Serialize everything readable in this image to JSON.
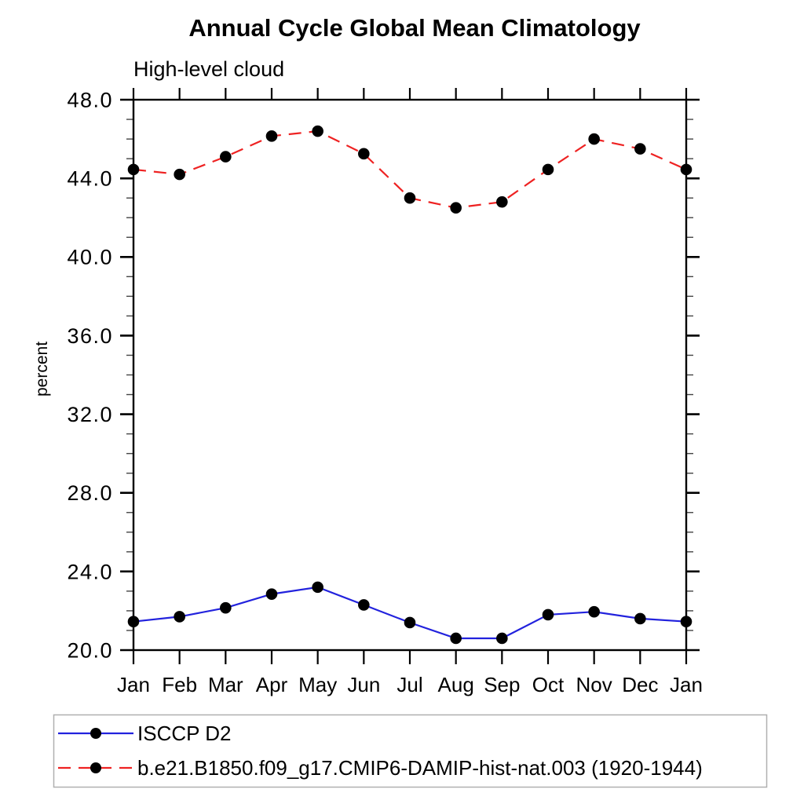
{
  "chart_data": {
    "type": "line",
    "title": "Annual Cycle Global Mean Climatology",
    "subtitle": "High-level cloud",
    "ylabel": "percent",
    "xlabel": "",
    "categories": [
      "Jan",
      "Feb",
      "Mar",
      "Apr",
      "May",
      "Jun",
      "Jul",
      "Aug",
      "Sep",
      "Oct",
      "Nov",
      "Dec",
      "Jan"
    ],
    "ylim": [
      20,
      48
    ],
    "ytick_major": [
      20,
      24,
      28,
      32,
      36,
      40,
      44,
      48
    ],
    "ytick_major_labels": [
      "20.0",
      "24.0",
      "28.0",
      "32.0",
      "36.0",
      "40.0",
      "44.0",
      "48.0"
    ],
    "ytick_minor_step": 1,
    "grid": false,
    "legend_position": "bottom-left-box",
    "series": [
      {
        "name": "ISCCP D2",
        "color": "#2222dd",
        "line_style": "solid",
        "marker": "circle",
        "marker_color": "#000000",
        "values": [
          21.45,
          21.7,
          22.15,
          22.85,
          23.2,
          22.3,
          21.4,
          20.6,
          20.6,
          21.8,
          21.95,
          21.6,
          21.45
        ]
      },
      {
        "name": "b.e21.B1850.f09_g17.CMIP6-DAMIP-hist-nat.003 (1920-1944)",
        "color": "#ee2222",
        "line_style": "dashed",
        "marker": "circle",
        "marker_color": "#000000",
        "values": [
          44.45,
          44.2,
          45.1,
          46.15,
          46.4,
          45.25,
          43.0,
          42.5,
          42.8,
          44.45,
          46.0,
          45.5,
          44.45
        ]
      }
    ]
  }
}
